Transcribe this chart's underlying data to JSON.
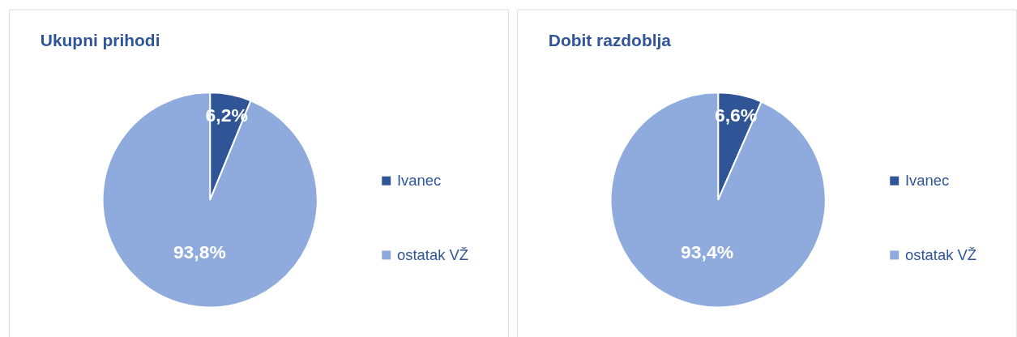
{
  "chart_data": [
    {
      "type": "pie",
      "title": "Ukupni prihodi",
      "categories": [
        "Ivanec",
        "ostatak VŽ"
      ],
      "values": [
        6.2,
        93.8
      ],
      "colors": [
        "#2f5597",
        "#8faadc"
      ],
      "value_labels": [
        "6,2%",
        "93,8%"
      ],
      "legend": "right"
    },
    {
      "type": "pie",
      "title": "Dobit razdoblja",
      "categories": [
        "Ivanec",
        "ostatak VŽ"
      ],
      "values": [
        6.6,
        93.4
      ],
      "colors": [
        "#2f5597",
        "#8faadc"
      ],
      "value_labels": [
        "6,6%",
        "93,4%"
      ],
      "legend": "right"
    }
  ]
}
